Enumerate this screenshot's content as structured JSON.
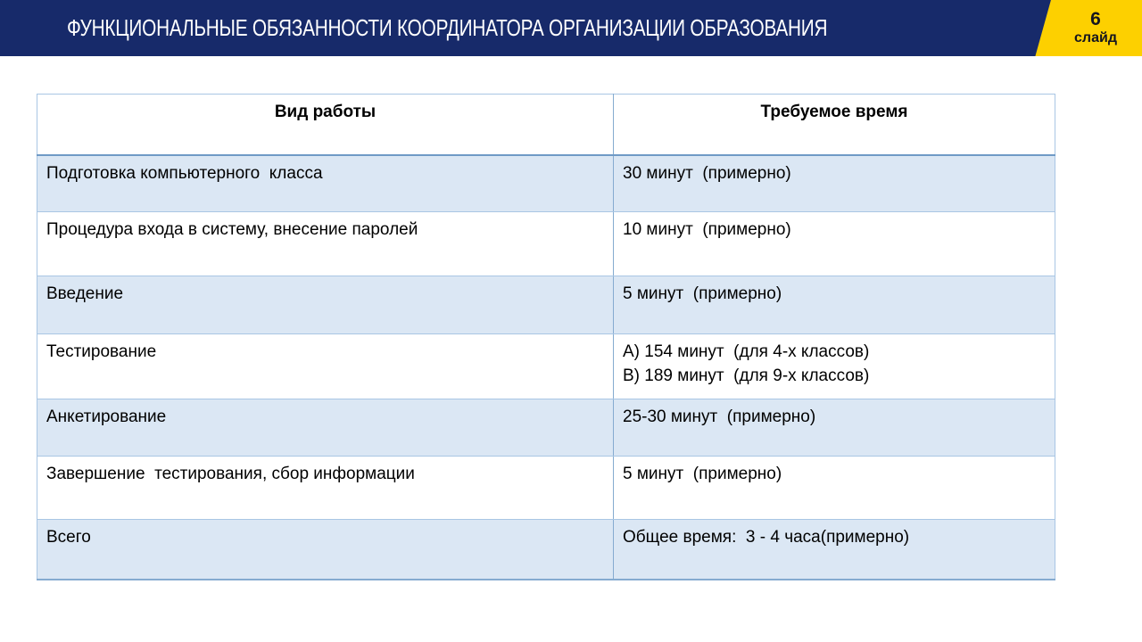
{
  "slide": {
    "title": "ФУНКЦИОНАЛЬНЫЕ ОБЯЗАННОСТИ КООРДИНАТОРА ОРГАНИЗАЦИИ ОБРАЗОВАНИЯ",
    "badge": {
      "number": "6",
      "label": "слайд"
    },
    "colors": {
      "header_bg": "#172a6a",
      "badge_bg": "#fdd000",
      "row_alt_bg": "#dbe7f4",
      "table_border": "#a9c6e4",
      "header_rule": "#6f9ac6"
    }
  },
  "table": {
    "columns": [
      "Вид работы",
      "Требуемое время"
    ],
    "rows": [
      {
        "work": "Подготовка компьютерного  класса",
        "time": "30 минут  (примерно)"
      },
      {
        "work": "Процедура входа в систему, внесение паролей",
        "time": "10 минут  (примерно)"
      },
      {
        "work": "Введение",
        "time": "5 минут  (примерно)"
      },
      {
        "work": "Тестирование",
        "time": "А) 154 минут  (для 4-х классов)\nВ) 189 минут  (для 9-х классов)"
      },
      {
        "work": "Анкетирование",
        "time": "25-30 минут  (примерно)"
      },
      {
        "work": "Завершение  тестирования, сбор информации",
        "time": "5 минут  (примерно)"
      },
      {
        "work": "Всего",
        "time": "Общее время:  3 - 4 часа(примерно)"
      }
    ]
  }
}
